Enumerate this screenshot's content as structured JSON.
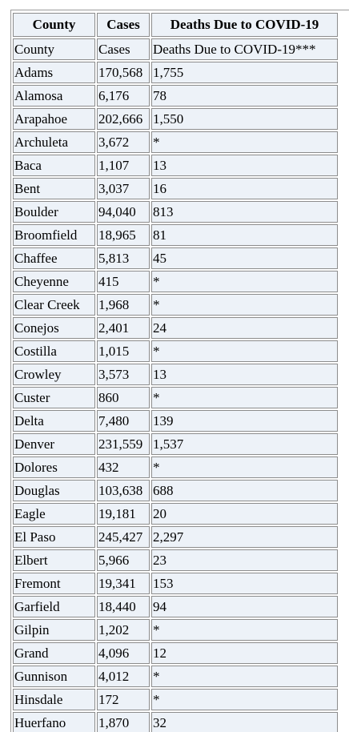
{
  "table": {
    "headers": [
      "County",
      "Cases",
      "Deaths Due to COVID-19"
    ],
    "rows": [
      [
        "County",
        "Cases",
        "Deaths Due to COVID-19***"
      ],
      [
        "Adams",
        "170,568",
        "1,755"
      ],
      [
        "Alamosa",
        "6,176",
        "78"
      ],
      [
        "Arapahoe",
        "202,666",
        "1,550"
      ],
      [
        "Archuleta",
        "3,672",
        "*"
      ],
      [
        "Baca",
        "1,107",
        "13"
      ],
      [
        "Bent",
        "3,037",
        "16"
      ],
      [
        "Boulder",
        "94,040",
        "813"
      ],
      [
        "Broomfield",
        "18,965",
        "81"
      ],
      [
        "Chaffee",
        "5,813",
        "45"
      ],
      [
        "Cheyenne",
        "415",
        "*"
      ],
      [
        "Clear Creek",
        "1,968",
        "*"
      ],
      [
        "Conejos",
        "2,401",
        "24"
      ],
      [
        "Costilla",
        "1,015",
        "*"
      ],
      [
        "Crowley",
        "3,573",
        "13"
      ],
      [
        "Custer",
        "860",
        "*"
      ],
      [
        "Delta",
        "7,480",
        "139"
      ],
      [
        "Denver",
        "231,559",
        "1,537"
      ],
      [
        "Dolores",
        "432",
        "*"
      ],
      [
        "Douglas",
        "103,638",
        "688"
      ],
      [
        "Eagle",
        "19,181",
        "20"
      ],
      [
        "El Paso",
        "245,427",
        "2,297"
      ],
      [
        "Elbert",
        "5,966",
        "23"
      ],
      [
        "Fremont",
        "19,341",
        "153"
      ],
      [
        "Garfield",
        "18,440",
        "94"
      ],
      [
        "Gilpin",
        "1,202",
        "*"
      ],
      [
        "Grand",
        "4,096",
        "12"
      ],
      [
        "Gunnison",
        "4,012",
        "*"
      ],
      [
        "Hinsdale",
        "172",
        "*"
      ],
      [
        "Huerfano",
        "1,870",
        "32"
      ],
      [
        "",
        "",
        ""
      ]
    ]
  }
}
